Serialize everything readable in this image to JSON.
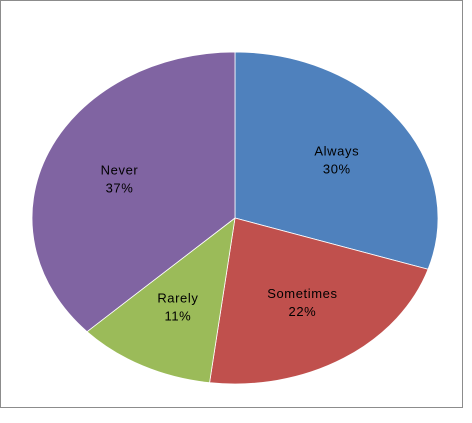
{
  "chart_data": {
    "type": "pie",
    "slices": [
      {
        "label": "Always",
        "percent_label": "30%",
        "value": 30,
        "color": "#4f81bd"
      },
      {
        "label": "Sometimes",
        "percent_label": "22%",
        "value": 22,
        "color": "#c0504d"
      },
      {
        "label": "Rarely",
        "percent_label": "11%",
        "value": 11,
        "color": "#9bbb59"
      },
      {
        "label": "Never",
        "percent_label": "37%",
        "value": 37,
        "color": "#8064a2"
      }
    ],
    "start": "12 o'clock",
    "direction": "clockwise",
    "data_labels": "category name and percentage inside slices",
    "legend": "none"
  }
}
